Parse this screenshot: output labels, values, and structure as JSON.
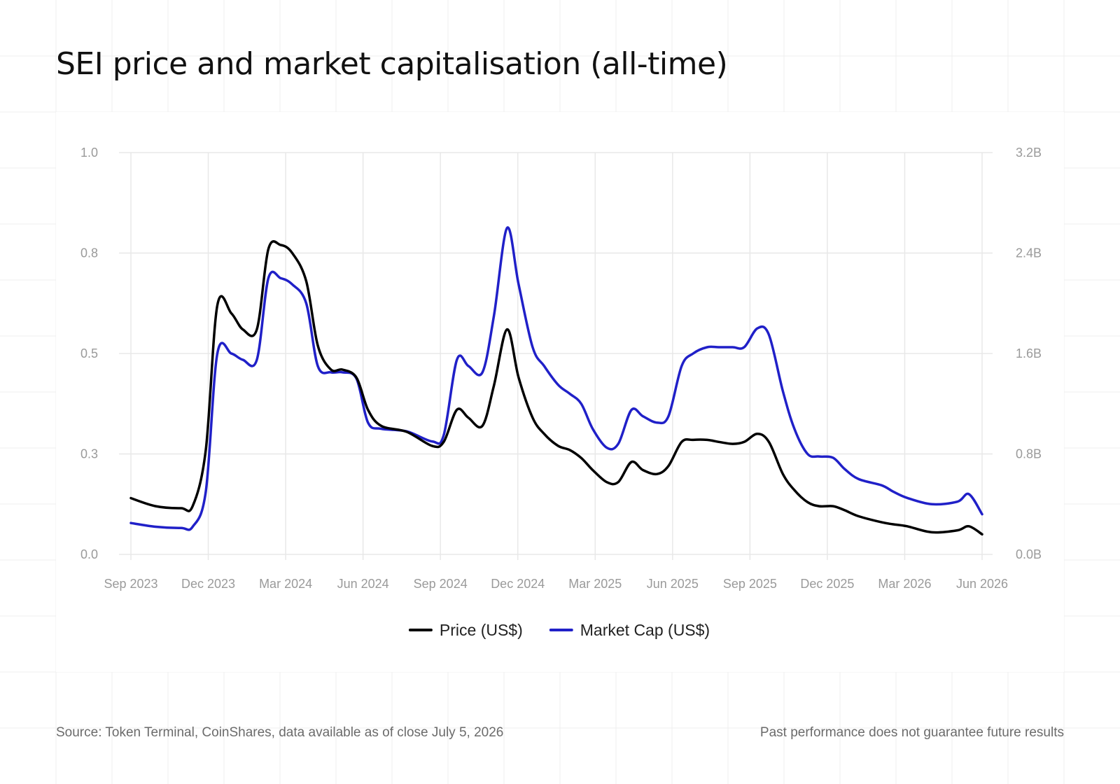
{
  "title": "SEI price and market capitalisation (all-time)",
  "footer": {
    "source": "Source: Token Terminal, CoinShares, data available as of close July 5, 2026",
    "disclaimer": "Past performance does not guarantee future results"
  },
  "colors": {
    "price": "#000000",
    "market_cap": "#2020c8",
    "gridline": "#e8e8e8",
    "background_grid": "#efefef",
    "tick_text": "#9a9a9a"
  },
  "chart_data": {
    "type": "line",
    "title": "SEI price and market capitalisation (all-time)",
    "x_ticks": [
      "Sep 2023",
      "Dec 2023",
      "Mar 2024",
      "Jun 2024",
      "Sep 2024",
      "Dec 2024",
      "Mar 2025",
      "Jun 2025",
      "Sep 2025",
      "Dec 2025",
      "Mar 2026",
      "Jun 2026"
    ],
    "y_left": {
      "ticks": [
        "0.0",
        "0.3",
        "0.5",
        "0.8",
        "1.0"
      ],
      "range": [
        0,
        1.0
      ]
    },
    "y_right": {
      "ticks": [
        "0.0B",
        "0.8B",
        "1.6B",
        "2.4B",
        "3.2B"
      ],
      "range": [
        0,
        3.2
      ]
    },
    "grid": true,
    "legend_position": "bottom-center",
    "x": [
      "2023-09",
      "2023-10",
      "2023-11",
      "2023-11-15",
      "2023-12",
      "2023-12-15",
      "2024-01",
      "2024-01-15",
      "2024-02",
      "2024-02-15",
      "2024-03",
      "2024-03-15",
      "2024-04",
      "2024-04-15",
      "2024-05",
      "2024-05-15",
      "2024-06",
      "2024-06-15",
      "2024-07",
      "2024-08",
      "2024-09",
      "2024-09-15",
      "2024-10",
      "2024-10-15",
      "2024-11",
      "2024-11-15",
      "2024-12",
      "2024-12-15",
      "2025-01",
      "2025-01-15",
      "2025-02",
      "2025-02-15",
      "2025-03",
      "2025-03-15",
      "2025-04",
      "2025-04-15",
      "2025-05",
      "2025-05-15",
      "2025-06",
      "2025-06-15",
      "2025-07",
      "2025-07-15",
      "2025-08",
      "2025-08-15",
      "2025-09",
      "2025-09-15",
      "2025-10",
      "2025-10-15",
      "2025-11",
      "2025-11-15",
      "2025-12",
      "2025-12-15",
      "2026-01",
      "2026-01-15",
      "2026-02",
      "2026-03",
      "2026-03-15",
      "2026-04",
      "2026-05",
      "2026-06",
      "2026-06-15",
      "2026-07"
    ],
    "series": [
      {
        "name": "Price (US$)",
        "axis": "left",
        "values": [
          0.14,
          0.12,
          0.115,
          0.12,
          0.26,
          0.62,
          0.6,
          0.56,
          0.56,
          0.76,
          0.77,
          0.75,
          0.68,
          0.52,
          0.46,
          0.46,
          0.44,
          0.36,
          0.32,
          0.305,
          0.27,
          0.28,
          0.36,
          0.34,
          0.32,
          0.42,
          0.56,
          0.44,
          0.34,
          0.3,
          0.27,
          0.26,
          0.24,
          0.21,
          0.18,
          0.18,
          0.23,
          0.21,
          0.2,
          0.22,
          0.28,
          0.285,
          0.285,
          0.28,
          0.275,
          0.28,
          0.3,
          0.28,
          0.2,
          0.16,
          0.13,
          0.12,
          0.12,
          0.11,
          0.095,
          0.08,
          0.075,
          0.07,
          0.055,
          0.06,
          0.07,
          0.05
        ]
      },
      {
        "name": "Market Cap (US$)",
        "axis": "right",
        "values": [
          0.25,
          0.22,
          0.21,
          0.22,
          0.5,
          1.6,
          1.6,
          1.55,
          1.55,
          2.2,
          2.2,
          2.15,
          2.0,
          1.5,
          1.45,
          1.45,
          1.4,
          1.05,
          1.0,
          0.98,
          0.9,
          0.95,
          1.55,
          1.5,
          1.45,
          1.9,
          2.6,
          2.15,
          1.65,
          1.5,
          1.35,
          1.28,
          1.2,
          1.0,
          0.85,
          0.88,
          1.15,
          1.1,
          1.05,
          1.1,
          1.5,
          1.6,
          1.65,
          1.65,
          1.65,
          1.65,
          1.8,
          1.75,
          1.3,
          1.0,
          0.8,
          0.78,
          0.77,
          0.68,
          0.6,
          0.55,
          0.5,
          0.45,
          0.4,
          0.42,
          0.48,
          0.32
        ]
      }
    ]
  }
}
